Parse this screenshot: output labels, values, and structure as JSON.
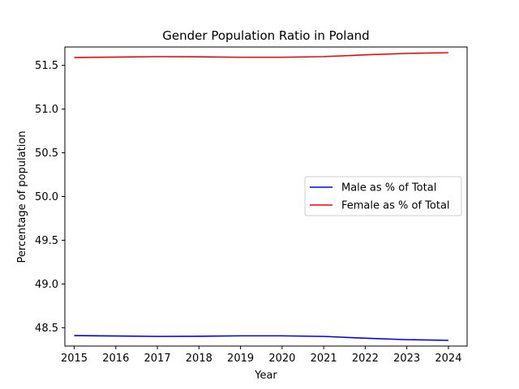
{
  "chart_data": {
    "type": "line",
    "title": "Gender Population Ratio in Poland",
    "xlabel": "Year",
    "ylabel": "Percentage of population",
    "x": [
      2015,
      2016,
      2017,
      2018,
      2019,
      2020,
      2021,
      2022,
      2023,
      2024
    ],
    "series": [
      {
        "name": "Male as % of Total",
        "color": "#0000ff",
        "values": [
          48.41,
          48.405,
          48.4,
          48.402,
          48.407,
          48.407,
          48.4,
          48.38,
          48.363,
          48.355
        ]
      },
      {
        "name": "Female as % of Total",
        "color": "#ff0000",
        "values": [
          51.59,
          51.595,
          51.6,
          51.598,
          51.593,
          51.593,
          51.6,
          51.62,
          51.637,
          51.645
        ]
      }
    ],
    "xlim": [
      2014.775,
      2024.45
    ],
    "ylim": [
      48.29,
      51.71
    ],
    "xticks": [
      "2015",
      "2016",
      "2017",
      "2018",
      "2019",
      "2020",
      "2021",
      "2022",
      "2023",
      "2024"
    ],
    "yticks": [
      "48.5",
      "49.0",
      "49.5",
      "50.0",
      "50.5",
      "51.0",
      "51.5"
    ],
    "grid": false,
    "legend_position": "center-right"
  }
}
